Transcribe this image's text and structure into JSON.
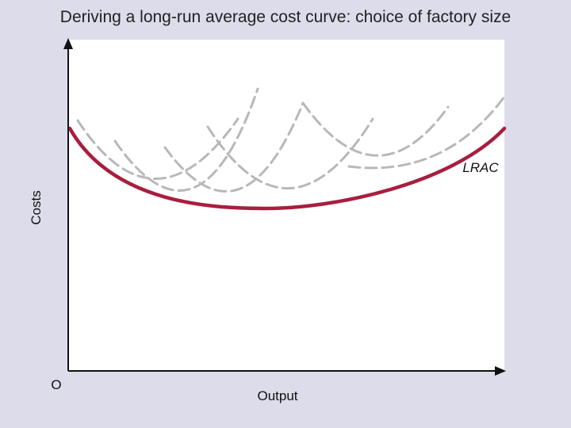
{
  "title": "Deriving a long-run average cost curve: choice of factory size",
  "axes": {
    "y_label": "Costs",
    "x_label": "Output",
    "origin_label": "O"
  },
  "curves": {
    "lrac_label": "LRAC"
  },
  "colors": {
    "background": "#dcdcea",
    "plot": "#ffffff",
    "lrac": "#a81e3e",
    "srac": "#b8b8b8",
    "axes": "#111111"
  }
}
